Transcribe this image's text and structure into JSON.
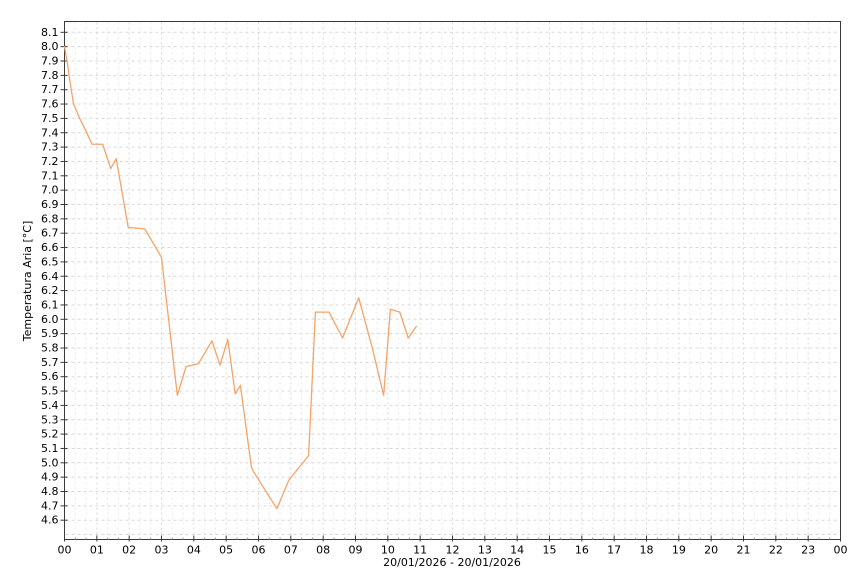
{
  "chart": {
    "y_axis_title": "Temperatura Aria [°C]",
    "x_axis_title": "20/01/2026 - 20/01/2026",
    "y_tick_labels": [
      "8.1",
      "8.0",
      "7.9",
      "7.8",
      "7.7",
      "7.6",
      "7.5",
      "7.4",
      "7.3",
      "7.2",
      "7.1",
      "7.0",
      "6.9",
      "6.8",
      "6.7",
      "6.6",
      "6.5",
      "6.4",
      "6.2",
      "6.1",
      "6.0",
      "5.9",
      "5.8",
      "5.7",
      "5.6",
      "5.5",
      "5.4",
      "5.3",
      "5.2",
      "5.1",
      "5.0",
      "4.9",
      "4.8",
      "4.7",
      "4.6"
    ],
    "x_tick_labels": [
      "00",
      "01",
      "02",
      "03",
      "04",
      "05",
      "06",
      "07",
      "08",
      "09",
      "10",
      "11",
      "12",
      "13",
      "14",
      "15",
      "16",
      "17",
      "18",
      "19",
      "20",
      "21",
      "22",
      "23",
      "00"
    ],
    "colors": {
      "line": "#f3a468",
      "grid_major": "#d8d8d8",
      "grid_minor": "#e8e8e8",
      "axis": "#3a3a3a",
      "tick": "#3a3a3a",
      "minor_tick": "#999999",
      "background": "#ffffff"
    }
  },
  "chart_data": {
    "type": "line",
    "title": "",
    "xlabel": "20/01/2026 - 20/01/2026",
    "ylabel": "Temperatura Aria [°C]",
    "x_unit": "hour_of_day",
    "xlim": [
      0,
      24
    ],
    "ylim": [
      4.5,
      8.2
    ],
    "y_tick_step": 0.1,
    "y_tick_label_anomaly": "label 6.3 is skipped on the axis",
    "grid": true,
    "legend_position": "none",
    "series": [
      {
        "name": "Temperatura Aria",
        "points": [
          [
            0.0,
            8.0
          ],
          [
            0.1,
            7.87
          ],
          [
            0.18,
            7.74
          ],
          [
            0.28,
            7.6
          ],
          [
            0.47,
            7.5
          ],
          [
            0.67,
            7.41
          ],
          [
            0.85,
            7.32
          ],
          [
            1.18,
            7.32
          ],
          [
            1.43,
            7.15
          ],
          [
            1.6,
            7.22
          ],
          [
            1.97,
            6.74
          ],
          [
            2.48,
            6.73
          ],
          [
            2.9,
            6.57
          ],
          [
            3.0,
            6.53
          ],
          [
            3.49,
            5.47
          ],
          [
            3.76,
            5.67
          ],
          [
            4.14,
            5.69
          ],
          [
            4.56,
            5.85
          ],
          [
            4.81,
            5.68
          ],
          [
            5.05,
            5.86
          ],
          [
            5.28,
            5.48
          ],
          [
            5.44,
            5.54
          ],
          [
            5.78,
            4.97
          ],
          [
            5.84,
            4.94
          ],
          [
            6.57,
            4.68
          ],
          [
            6.94,
            4.88
          ],
          [
            7.55,
            5.05
          ],
          [
            7.76,
            6.05
          ],
          [
            8.18,
            6.05
          ],
          [
            8.6,
            5.87
          ],
          [
            9.1,
            6.15
          ],
          [
            9.52,
            5.8
          ],
          [
            9.87,
            5.47
          ],
          [
            10.08,
            6.07
          ],
          [
            10.37,
            6.05
          ],
          [
            10.63,
            5.87
          ],
          [
            10.88,
            5.95
          ]
        ]
      }
    ]
  }
}
